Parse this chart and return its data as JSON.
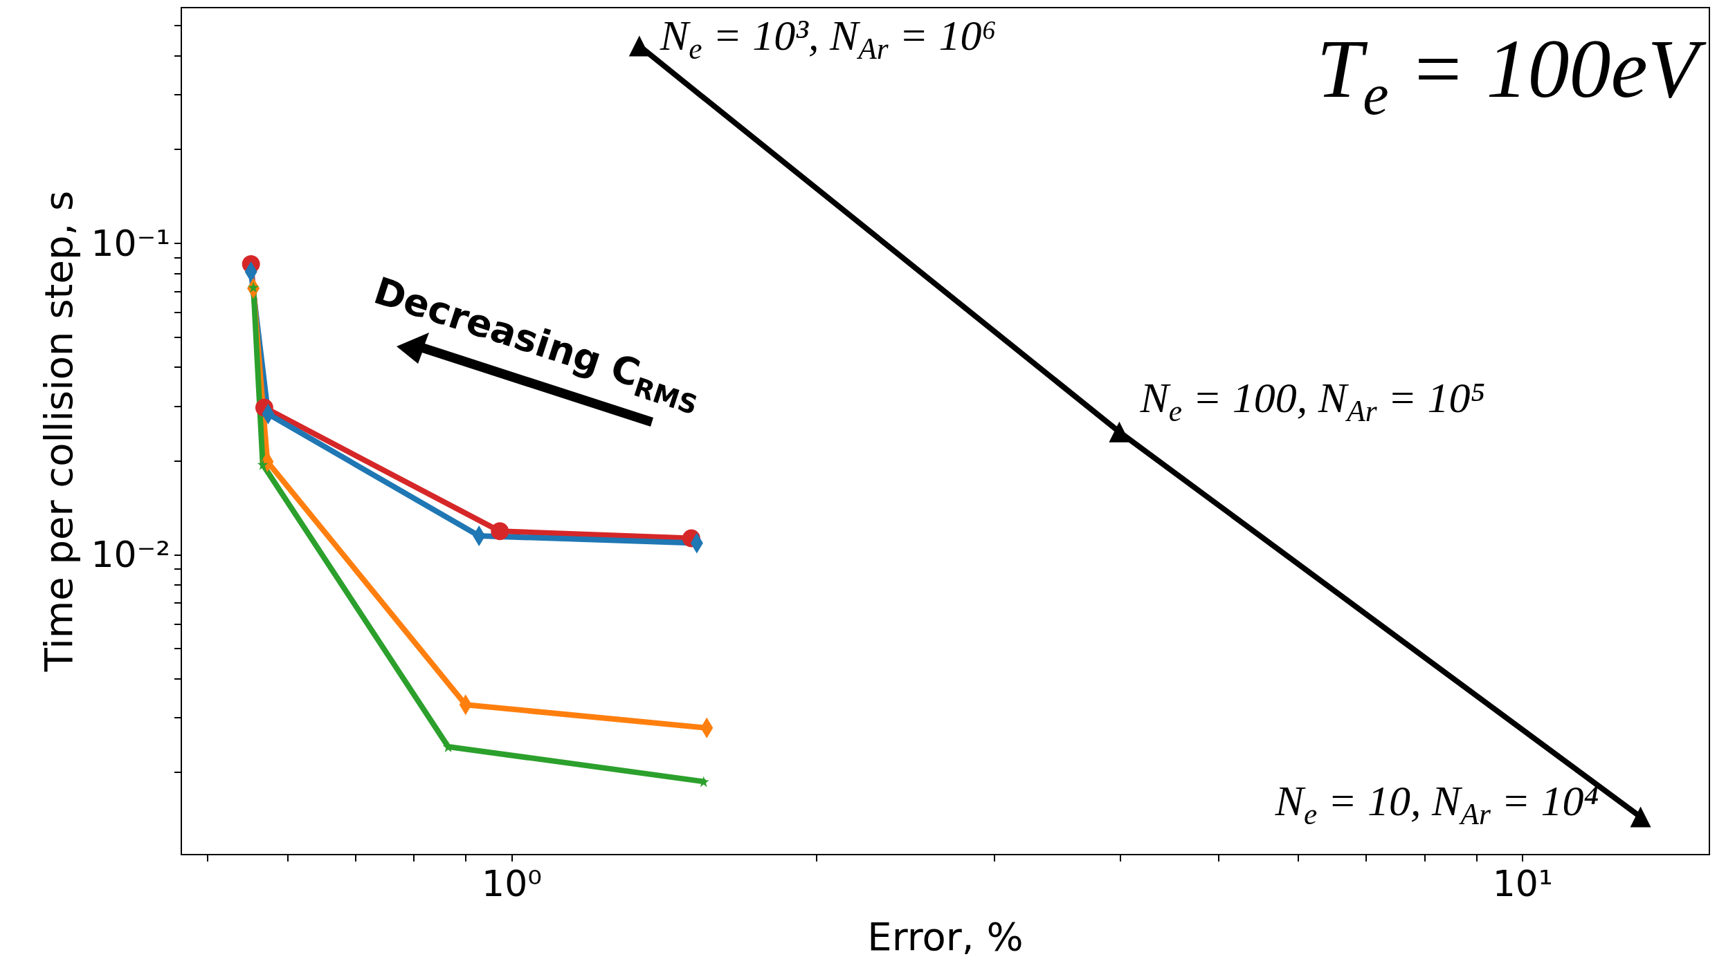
{
  "chart_data": {
    "type": "line",
    "xlabel": "Error, %",
    "ylabel": "Time per collision step, s",
    "log": "xy",
    "grid": false,
    "line_style": "solid",
    "xlim": [
      0.471,
      15.3
    ],
    "ylim": [
      0.00109,
      0.571
    ],
    "xticks": [
      {
        "value": 0.5,
        "label": null
      },
      {
        "value": 0.6,
        "label": null
      },
      {
        "value": 0.7,
        "label": null
      },
      {
        "value": 0.8,
        "label": null
      },
      {
        "value": 0.9,
        "label": null
      },
      {
        "value": 1,
        "label": "10⁰"
      },
      {
        "value": 2,
        "label": null
      },
      {
        "value": 3,
        "label": null
      },
      {
        "value": 4,
        "label": null
      },
      {
        "value": 5,
        "label": null
      },
      {
        "value": 6,
        "label": null
      },
      {
        "value": 7,
        "label": null
      },
      {
        "value": 8,
        "label": null
      },
      {
        "value": 9,
        "label": null
      },
      {
        "value": 10,
        "label": "10¹"
      }
    ],
    "yticks": [
      {
        "value": 0.002,
        "label": null
      },
      {
        "value": 0.003,
        "label": null
      },
      {
        "value": 0.004,
        "label": null
      },
      {
        "value": 0.005,
        "label": null
      },
      {
        "value": 0.006,
        "label": null
      },
      {
        "value": 0.007,
        "label": null
      },
      {
        "value": 0.008,
        "label": null
      },
      {
        "value": 0.009,
        "label": null
      },
      {
        "value": 0.01,
        "label": "10⁻²"
      },
      {
        "value": 0.02,
        "label": null
      },
      {
        "value": 0.03,
        "label": null
      },
      {
        "value": 0.04,
        "label": null
      },
      {
        "value": 0.05,
        "label": null
      },
      {
        "value": 0.06,
        "label": null
      },
      {
        "value": 0.07,
        "label": null
      },
      {
        "value": 0.08,
        "label": null
      },
      {
        "value": 0.09,
        "label": null
      },
      {
        "value": 0.1,
        "label": "10⁻¹"
      },
      {
        "value": 0.2,
        "label": null
      },
      {
        "value": 0.3,
        "label": null
      },
      {
        "value": 0.4,
        "label": null
      },
      {
        "value": 0.5,
        "label": null
      }
    ],
    "series": [
      {
        "color": "#000000",
        "marker": "triangle",
        "x": [
          1.337,
          3.99,
          13.08
        ],
        "values": [
          0.43,
          0.0248,
          0.00144
        ]
      },
      {
        "color": "#d62728",
        "marker": "circle",
        "x": [
          0.552,
          0.569,
          0.973,
          1.505
        ],
        "values": [
          0.0857,
          0.0297,
          0.0119,
          0.0113
        ]
      },
      {
        "color": "#1f77b4",
        "marker": "diamond",
        "x": [
          0.552,
          0.574,
          0.928,
          1.524
        ],
        "values": [
          0.081,
          0.0283,
          0.0115,
          0.0109
        ]
      },
      {
        "color": "#ff7f0e",
        "marker": "diamond",
        "x": [
          0.555,
          0.573,
          0.9,
          1.559
        ],
        "values": [
          0.0717,
          0.0199,
          0.0033,
          0.00278
        ]
      },
      {
        "color": "#2ca02c",
        "marker": "star",
        "x": [
          0.555,
          0.567,
          0.865,
          1.548
        ],
        "values": [
          0.0723,
          0.0195,
          0.00242,
          0.00187
        ]
      }
    ],
    "annotations": [
      {
        "text": "N$_{e}$ = 10³, N$_{Ar}$ = 10⁶",
        "x": 1.337,
        "y": 0.43
      },
      {
        "text": "N$_{e}$ = 100, N$_{Ar}$ = 10⁵",
        "x": 3.99,
        "y": 0.0248
      },
      {
        "text": "N$_{e}$ = 10, N$_{Ar}$ = 10⁴",
        "x": 13.08,
        "y": 0.00144
      },
      "T$_{e}$ = 100eV",
      "Decreasing C$_{RMS}$"
    ]
  }
}
